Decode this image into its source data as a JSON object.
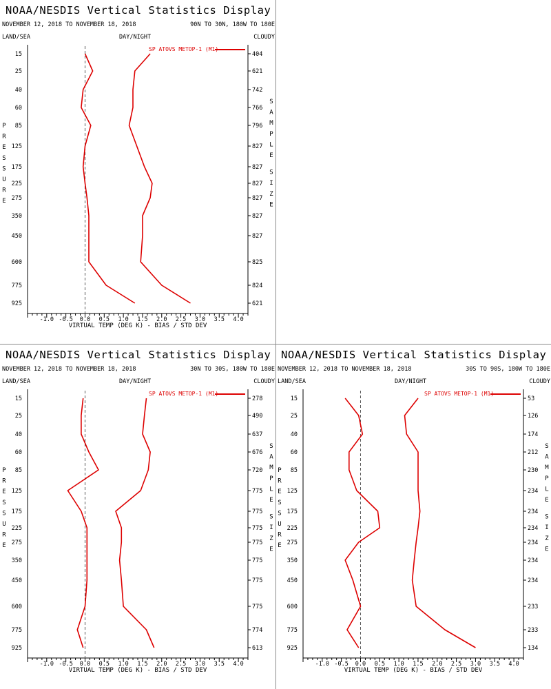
{
  "display_title": "NOAA/NESDIS Vertical Statistics Display",
  "date_range": "NOVEMBER 12, 2018 TO NOVEMBER 18, 2018",
  "labels": {
    "land_sea": "LAND/SEA",
    "day_night": "DAY/NIGHT",
    "cloudy": "CLOUDY",
    "pressure_axis": "PRESSURE",
    "sample_size_axis": "SAMPLE SIZE",
    "xlabel": "VIRTUAL TEMP (DEG K) - BIAS / STD DEV"
  },
  "colors": {
    "series": "#dd0000",
    "axis": "#000000",
    "zero_line": "#555555"
  },
  "chart_data": [
    {
      "type": "line",
      "region": "90N TO 30N, 180W TO 180E",
      "legend": "SP ATOVS METOP-1 (M1)",
      "pressure_levels": [
        15,
        25,
        40,
        60,
        85,
        125,
        175,
        225,
        275,
        350,
        450,
        600,
        775,
        925
      ],
      "sample_size": [
        404,
        621,
        742,
        766,
        796,
        827,
        827,
        827,
        827,
        827,
        827,
        825,
        824,
        621
      ],
      "series": [
        {
          "name": "BIAS",
          "values": [
            0.0,
            0.2,
            -0.05,
            -0.1,
            0.15,
            0.0,
            -0.05,
            0.0,
            0.05,
            0.1,
            0.1,
            0.1,
            0.55,
            1.3
          ]
        },
        {
          "name": "STD DEV",
          "values": [
            1.7,
            1.3,
            1.25,
            1.25,
            1.15,
            1.35,
            1.55,
            1.75,
            1.7,
            1.5,
            1.5,
            1.45,
            2.0,
            2.75
          ]
        }
      ],
      "xticks": [
        "-1.0",
        "-0.5",
        "0.0",
        "0.5",
        "1.0",
        "1.5",
        "2.0",
        "2.5",
        "3.0",
        "3.5",
        "4.0"
      ],
      "xlim": [
        -1.5,
        4.25
      ]
    },
    {
      "type": "line",
      "region": "30N TO 30S, 180W TO 180E",
      "legend": "SP ATOVS METOP-1 (M1)",
      "pressure_levels": [
        15,
        25,
        40,
        60,
        85,
        125,
        175,
        225,
        275,
        350,
        450,
        600,
        775,
        925
      ],
      "sample_size": [
        278,
        490,
        637,
        676,
        720,
        775,
        775,
        775,
        775,
        775,
        775,
        775,
        774,
        613
      ],
      "series": [
        {
          "name": "BIAS",
          "values": [
            -0.05,
            -0.1,
            -0.1,
            0.1,
            0.35,
            -0.45,
            -0.1,
            0.05,
            0.05,
            0.05,
            0.05,
            0.0,
            -0.2,
            -0.05
          ]
        },
        {
          "name": "STD DEV",
          "values": [
            1.6,
            1.55,
            1.5,
            1.7,
            1.65,
            1.45,
            0.8,
            0.95,
            0.95,
            0.9,
            0.95,
            1.0,
            1.6,
            1.8
          ]
        }
      ],
      "xticks": [
        "-1.0",
        "-0.5",
        "0.0",
        "0.5",
        "1.0",
        "1.5",
        "2.0",
        "2.5",
        "3.0",
        "3.5",
        "4.0"
      ],
      "xlim": [
        -1.5,
        4.25
      ]
    },
    {
      "type": "line",
      "region": "30S TO 90S, 180W TO 180E",
      "legend": "SP ATOVS METOP-1 (M1)",
      "pressure_levels": [
        15,
        25,
        40,
        60,
        85,
        125,
        175,
        225,
        275,
        350,
        450,
        600,
        775,
        925
      ],
      "sample_size": [
        53,
        126,
        174,
        212,
        230,
        234,
        234,
        234,
        234,
        234,
        234,
        233,
        233,
        134
      ],
      "series": [
        {
          "name": "BIAS",
          "values": [
            -0.4,
            -0.05,
            0.05,
            -0.3,
            -0.3,
            -0.1,
            0.45,
            0.5,
            -0.05,
            -0.4,
            -0.2,
            0.0,
            -0.35,
            -0.05
          ]
        },
        {
          "name": "STD DEV",
          "values": [
            1.5,
            1.15,
            1.2,
            1.5,
            1.5,
            1.5,
            1.55,
            1.5,
            1.45,
            1.4,
            1.35,
            1.45,
            2.2,
            3.0
          ]
        }
      ],
      "xticks": [
        "-1.0",
        "-0.5",
        "0.0",
        "0.5",
        "1.0",
        "1.5",
        "2.0",
        "2.5",
        "3.0",
        "3.5",
        "4.0"
      ],
      "xlim": [
        -1.5,
        4.25
      ]
    }
  ]
}
